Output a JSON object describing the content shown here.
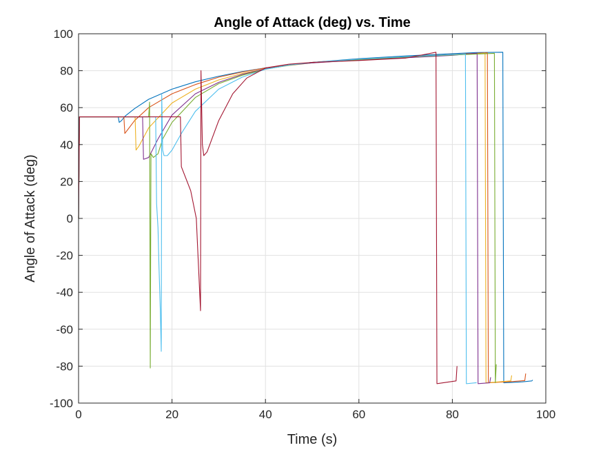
{
  "chart_data": {
    "type": "line",
    "title": "Angle of Attack (deg) vs. Time",
    "xlabel": "Time (s)",
    "ylabel": "Angle of Attack (deg)",
    "xlim": [
      0,
      100
    ],
    "ylim": [
      -100,
      100
    ],
    "xticks": [
      0,
      20,
      40,
      60,
      80,
      100
    ],
    "yticks": [
      -100,
      -80,
      -60,
      -40,
      -20,
      0,
      20,
      40,
      60,
      80,
      100
    ],
    "xtick_labels": [
      "0",
      "20",
      "40",
      "60",
      "80",
      "100"
    ],
    "ytick_labels": [
      "-100",
      "-80",
      "-60",
      "-40",
      "-20",
      "0",
      "20",
      "40",
      "60",
      "80",
      "100"
    ],
    "grid": true,
    "box": true,
    "series": [
      {
        "color": "#0072BD",
        "x": [
          0,
          0.2,
          8.5,
          8.7,
          9.2,
          10,
          12,
          15,
          20,
          25,
          30,
          35,
          40,
          45,
          50,
          60,
          70,
          80,
          85,
          90.8,
          91,
          93,
          95,
          97,
          97.2
        ],
        "y": [
          0,
          55,
          55,
          52,
          53,
          55.5,
          59.5,
          64.5,
          70,
          74,
          77,
          79.5,
          81.5,
          83,
          84.5,
          86.5,
          88,
          89.2,
          89.8,
          90,
          -89,
          -88.8,
          -88.5,
          -88,
          -87.5
        ]
      },
      {
        "color": "#D95319",
        "x": [
          0,
          0.2,
          9.7,
          9.9,
          10.5,
          12,
          15,
          20,
          25,
          30,
          35,
          40,
          45,
          50,
          60,
          70,
          80,
          87.5,
          87.7,
          90,
          93,
          95.5,
          95.7
        ],
        "y": [
          0,
          55,
          55,
          46,
          48,
          53,
          60,
          67.5,
          72.5,
          76.5,
          79.3,
          81.5,
          83,
          84.5,
          86.2,
          87.6,
          88.8,
          89.7,
          -89,
          -88.7,
          -88.3,
          -87.8,
          -84
        ]
      },
      {
        "color": "#EDB120",
        "x": [
          0,
          0.2,
          12.1,
          12.3,
          13,
          15,
          20,
          25,
          30,
          35,
          40,
          45,
          50,
          60,
          70,
          80,
          86,
          87,
          87.2,
          90,
          92.5,
          92.7
        ],
        "y": [
          0,
          55,
          55,
          37,
          39.5,
          49,
          62.5,
          70,
          75,
          78.5,
          81,
          82.8,
          84.2,
          86,
          87.3,
          88.5,
          89.3,
          89.5,
          -89,
          -88.5,
          -88,
          -85
        ]
      },
      {
        "color": "#7E2F8E",
        "x": [
          0,
          0.2,
          13.7,
          13.9,
          15,
          17,
          20,
          25,
          30,
          35,
          40,
          45,
          50,
          60,
          70,
          80,
          85.3,
          85.5,
          88,
          88.2
        ],
        "y": [
          0,
          55,
          55,
          32,
          33,
          43,
          56,
          67.5,
          73.7,
          78,
          81,
          83,
          84.2,
          85.8,
          87,
          88.3,
          89.5,
          -89.5,
          -89,
          -86
        ]
      },
      {
        "color": "#77AC30",
        "x": [
          0,
          0.2,
          15,
          15.2,
          15.35,
          15.5,
          16,
          17,
          18,
          20,
          25,
          30,
          35,
          40,
          45,
          50,
          60,
          70,
          80,
          89,
          89.2,
          89.4
        ],
        "y": [
          0,
          55,
          55,
          63,
          -81,
          35,
          33,
          35,
          43,
          52,
          65.5,
          73,
          77.5,
          80.8,
          83,
          84.5,
          86,
          87.4,
          88.5,
          89.4,
          -89,
          -79
        ]
      },
      {
        "color": "#4DBEEE",
        "x": [
          0,
          0.2,
          16.5,
          16.7,
          17,
          17.2,
          17.5,
          17.7,
          17.8,
          18,
          18.3,
          19,
          20,
          22,
          25,
          30,
          35,
          40,
          45,
          50,
          60,
          70,
          80,
          82.8,
          83,
          85,
          85.2
        ],
        "y": [
          0,
          55,
          55,
          8,
          -5,
          -25,
          -50,
          -72,
          67,
          37,
          34,
          34,
          37,
          46,
          58,
          70,
          76.5,
          80.8,
          83,
          84.5,
          86.2,
          87.6,
          88.7,
          89,
          -89.5,
          -89,
          -89
        ]
      },
      {
        "color": "#A2142F",
        "x": [
          0,
          0.2,
          21.8,
          22,
          24,
          25.2,
          26.1,
          26.2,
          26.5,
          26.8,
          27.5,
          30,
          33,
          36,
          40,
          45,
          50,
          60,
          70,
          76.5,
          76.7,
          78,
          80.8,
          81
        ],
        "y": [
          0,
          55,
          55,
          28,
          15,
          0,
          -50,
          80,
          40,
          34,
          36,
          53,
          67.5,
          76,
          81.5,
          83.5,
          84.5,
          85.5,
          86.8,
          90,
          -89.5,
          -89,
          -88,
          -80
        ]
      }
    ]
  }
}
